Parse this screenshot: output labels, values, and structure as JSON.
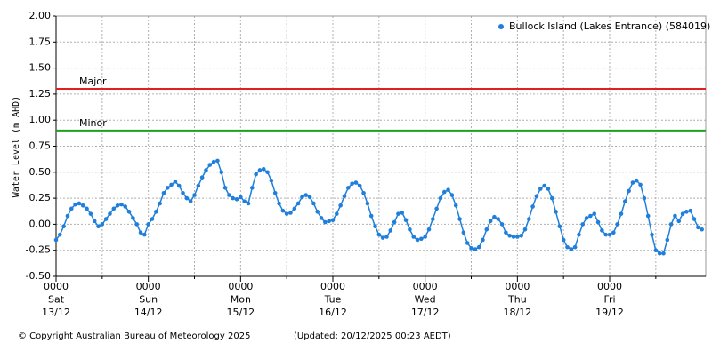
{
  "chart_data": {
    "type": "line",
    "ylabel": "Water Level (m AHD)",
    "x": [
      "13/12 0000",
      "13/12 0100",
      "13/12 0200",
      "13/12 0300",
      "13/12 0400",
      "13/12 0500",
      "13/12 0600",
      "13/12 0700",
      "13/12 0800",
      "13/12 0900",
      "13/12 1000",
      "13/12 1100",
      "13/12 1200",
      "13/12 1300",
      "13/12 1400",
      "13/12 1500",
      "13/12 1600",
      "13/12 1700",
      "13/12 1800",
      "13/12 1900",
      "13/12 2000",
      "13/12 2100",
      "13/12 2200",
      "13/12 2300",
      "14/12 0000",
      "14/12 0100",
      "14/12 0200",
      "14/12 0300",
      "14/12 0400",
      "14/12 0500",
      "14/12 0600",
      "14/12 0700",
      "14/12 0800",
      "14/12 0900",
      "14/12 1000",
      "14/12 1100",
      "14/12 1200",
      "14/12 1300",
      "14/12 1400",
      "14/12 1500",
      "14/12 1600",
      "14/12 1700",
      "14/12 1800",
      "14/12 1900",
      "14/12 2000",
      "14/12 2100",
      "14/12 2200",
      "14/12 2300",
      "15/12 0000",
      "15/12 0100",
      "15/12 0200",
      "15/12 0300",
      "15/12 0400",
      "15/12 0500",
      "15/12 0600",
      "15/12 0700",
      "15/12 0800",
      "15/12 0900",
      "15/12 1000",
      "15/12 1100",
      "15/12 1200",
      "15/12 1300",
      "15/12 1400",
      "15/12 1500",
      "15/12 1600",
      "15/12 1700",
      "15/12 1800",
      "15/12 1900",
      "15/12 2000",
      "15/12 2100",
      "15/12 2200",
      "15/12 2300",
      "16/12 0000",
      "16/12 0100",
      "16/12 0200",
      "16/12 0300",
      "16/12 0400",
      "16/12 0500",
      "16/12 0600",
      "16/12 0700",
      "16/12 0800",
      "16/12 0900",
      "16/12 1000",
      "16/12 1100",
      "16/12 1200",
      "16/12 1300",
      "16/12 1400",
      "16/12 1500",
      "16/12 1600",
      "16/12 1700",
      "16/12 1800",
      "16/12 1900",
      "16/12 2000",
      "16/12 2100",
      "16/12 2200",
      "16/12 2300",
      "17/12 0000",
      "17/12 0100",
      "17/12 0200",
      "17/12 0300",
      "17/12 0400",
      "17/12 0500",
      "17/12 0600",
      "17/12 0700",
      "17/12 0800",
      "17/12 0900",
      "17/12 1000",
      "17/12 1100",
      "17/12 1200",
      "17/12 1300",
      "17/12 1400",
      "17/12 1500",
      "17/12 1600",
      "17/12 1700",
      "17/12 1800",
      "17/12 1900",
      "17/12 2000",
      "17/12 2100",
      "17/12 2200",
      "17/12 2300",
      "18/12 0000",
      "18/12 0100",
      "18/12 0200",
      "18/12 0300",
      "18/12 0400",
      "18/12 0500",
      "18/12 0600",
      "18/12 0700",
      "18/12 0800",
      "18/12 0900",
      "18/12 1000",
      "18/12 1100",
      "18/12 1200",
      "18/12 1300",
      "18/12 1400",
      "18/12 1500",
      "18/12 1600",
      "18/12 1700",
      "18/12 1800",
      "18/12 1900",
      "18/12 2000",
      "18/12 2100",
      "18/12 2200",
      "18/12 2300",
      "19/12 0000",
      "19/12 0100",
      "19/12 0200",
      "19/12 0300",
      "19/12 0400",
      "19/12 0500",
      "19/12 0600",
      "19/12 0700",
      "19/12 0800",
      "19/12 0900",
      "19/12 1000",
      "19/12 1100",
      "19/12 1200",
      "19/12 1300",
      "19/12 1400",
      "19/12 1500",
      "19/12 1600",
      "19/12 1700",
      "19/12 1800",
      "19/12 1900",
      "19/12 2000",
      "19/12 2100",
      "19/12 2200",
      "19/12 2300",
      "20/12 0000"
    ],
    "series": [
      {
        "name": "Bullock Island (Lakes Entrance) (584019)",
        "color": "#1f7fdb",
        "values": [
          -0.15,
          -0.1,
          -0.02,
          0.08,
          0.15,
          0.19,
          0.2,
          0.18,
          0.15,
          0.1,
          0.03,
          -0.02,
          0,
          0.05,
          0.1,
          0.15,
          0.18,
          0.19,
          0.17,
          0.12,
          0.06,
          0.0,
          -0.08,
          -0.1,
          0.0,
          0.05,
          0.12,
          0.2,
          0.3,
          0.35,
          0.38,
          0.41,
          0.37,
          0.3,
          0.25,
          0.22,
          0.28,
          0.37,
          0.45,
          0.52,
          0.57,
          0.6,
          0.61,
          0.5,
          0.35,
          0.28,
          0.25,
          0.24,
          0.26,
          0.22,
          0.2,
          0.35,
          0.48,
          0.52,
          0.53,
          0.5,
          0.42,
          0.3,
          0.2,
          0.13,
          0.1,
          0.11,
          0.15,
          0.2,
          0.26,
          0.28,
          0.26,
          0.2,
          0.12,
          0.06,
          0.02,
          0.03,
          0.04,
          0.1,
          0.18,
          0.27,
          0.35,
          0.39,
          0.4,
          0.37,
          0.3,
          0.2,
          0.08,
          -0.02,
          -0.1,
          -0.13,
          -0.12,
          -0.06,
          0.02,
          0.1,
          0.11,
          0.04,
          -0.05,
          -0.12,
          -0.15,
          -0.14,
          -0.12,
          -0.05,
          0.05,
          0.15,
          0.25,
          0.31,
          0.33,
          0.28,
          0.18,
          0.05,
          -0.08,
          -0.18,
          -0.23,
          -0.24,
          -0.22,
          -0.15,
          -0.05,
          0.03,
          0.07,
          0.05,
          0.0,
          -0.08,
          -0.11,
          -0.12,
          -0.12,
          -0.11,
          -0.05,
          0.05,
          0.17,
          0.27,
          0.34,
          0.37,
          0.34,
          0.25,
          0.12,
          -0.02,
          -0.15,
          -0.22,
          -0.24,
          -0.22,
          -0.1,
          0.0,
          0.06,
          0.08,
          0.1,
          0.02,
          -0.06,
          -0.1,
          -0.1,
          -0.08,
          0.0,
          0.1,
          0.22,
          0.32,
          0.4,
          0.42,
          0.38,
          0.25,
          0.08,
          -0.1,
          -0.25,
          -0.28,
          -0.28,
          -0.15,
          0.0,
          0.08,
          0.03,
          0.1,
          0.12,
          0.13,
          0.05,
          -0.03,
          -0.05
        ]
      }
    ],
    "reference_lines": [
      {
        "label": "Major",
        "value": 1.3,
        "color": "#e02020"
      },
      {
        "label": "Minor",
        "value": 0.9,
        "color": "#20a020"
      }
    ],
    "xlim": [
      "13/12 0000",
      "20/12 0100"
    ],
    "xticks": [
      {
        "value": "13/12 0000",
        "label": [
          "0000",
          "Sat",
          "13/12"
        ]
      },
      {
        "value": "14/12 0000",
        "label": [
          "0000",
          "Sun",
          "14/12"
        ]
      },
      {
        "value": "15/12 0000",
        "label": [
          "0000",
          "Mon",
          "15/12"
        ]
      },
      {
        "value": "16/12 0000",
        "label": [
          "0000",
          "Tue",
          "16/12"
        ]
      },
      {
        "value": "17/12 0000",
        "label": [
          "0000",
          "Wed",
          "17/12"
        ]
      },
      {
        "value": "18/12 0000",
        "label": [
          "0000",
          "Thu",
          "18/12"
        ]
      },
      {
        "value": "19/12 0000",
        "label": [
          "0000",
          "Fri",
          "19/12"
        ]
      }
    ],
    "minor_xticks": [
      "13/12 1200",
      "14/12 1200",
      "15/12 1200",
      "16/12 1200",
      "17/12 1200",
      "18/12 1200",
      "19/12 1200"
    ],
    "ylim": [
      -0.5,
      2
    ],
    "yticks": [
      {
        "value": -0.5,
        "label": "-0.50"
      },
      {
        "value": -0.25,
        "label": "-0.25"
      },
      {
        "value": 0,
        "label": "0.00"
      },
      {
        "value": 0.25,
        "label": "0.25"
      },
      {
        "value": 0.5,
        "label": "0.50"
      },
      {
        "value": 0.75,
        "label": "0.75"
      },
      {
        "value": 1,
        "label": "1.00"
      },
      {
        "value": 1.25,
        "label": "1.25"
      },
      {
        "value": 1.5,
        "label": "1.50"
      },
      {
        "value": 1.75,
        "label": "1.75"
      },
      {
        "value": 2,
        "label": "2.00"
      }
    ],
    "grid": true,
    "legend_position": "top-right"
  },
  "footer": {
    "copyright": "© Copyright Australian Bureau of Meteorology 2025",
    "updated": "(Updated: 20/12/2025 00:23 AEDT)"
  }
}
